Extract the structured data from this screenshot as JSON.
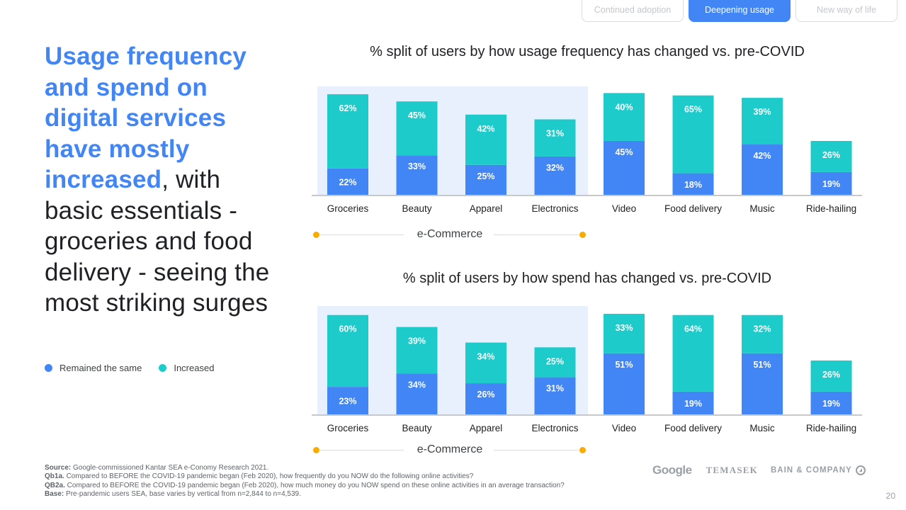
{
  "tabs": [
    {
      "label": "Continued adoption",
      "active": false
    },
    {
      "label": "Deepening usage",
      "active": true
    },
    {
      "label": "New way of life",
      "active": false
    }
  ],
  "headline": {
    "highlight": "Usage frequency and spend on digital services have mostly increased",
    "rest": ", with basic essentials - groceries and food delivery - seeing the most striking surges"
  },
  "legend": [
    {
      "label": "Remained the same",
      "color": "#4285f4"
    },
    {
      "label": "Increased",
      "color": "#1ccccc"
    }
  ],
  "group_label": "e-Commerce",
  "colors": {
    "remained": "#4285f4",
    "increased": "#1ecbcb",
    "ecommerce_bg": "#e8f0fe",
    "group_marker": "#f9ab00"
  },
  "chart_data": [
    {
      "type": "bar",
      "stacked": true,
      "title": "% split of users by how usage frequency has changed vs. pre-COVID",
      "categories": [
        "Groceries",
        "Beauty",
        "Apparel",
        "Electronics",
        "Video",
        "Food delivery",
        "Music",
        "Ride-hailing"
      ],
      "series": [
        {
          "name": "Remained the same",
          "values": [
            22,
            33,
            25,
            32,
            45,
            18,
            42,
            19
          ]
        },
        {
          "name": "Increased",
          "values": [
            62,
            45,
            42,
            31,
            40,
            65,
            39,
            26
          ]
        }
      ],
      "highlight_group": {
        "label": "e-Commerce",
        "categories": [
          "Groceries",
          "Beauty",
          "Apparel",
          "Electronics"
        ]
      },
      "unit": "%",
      "ylim": [
        0,
        90
      ],
      "grid": false,
      "xlabel": "",
      "ylabel": ""
    },
    {
      "type": "bar",
      "stacked": true,
      "title": "% split of users by how spend has changed vs. pre-COVID",
      "categories": [
        "Groceries",
        "Beauty",
        "Apparel",
        "Electronics",
        "Video",
        "Food delivery",
        "Music",
        "Ride-hailing"
      ],
      "series": [
        {
          "name": "Remained the same",
          "values": [
            23,
            34,
            26,
            31,
            51,
            19,
            51,
            19
          ]
        },
        {
          "name": "Increased",
          "values": [
            60,
            39,
            34,
            25,
            33,
            64,
            32,
            26
          ]
        }
      ],
      "highlight_group": {
        "label": "e-Commerce",
        "categories": [
          "Groceries",
          "Beauty",
          "Apparel",
          "Electronics"
        ]
      },
      "unit": "%",
      "ylim": [
        0,
        90
      ],
      "grid": false,
      "xlabel": "",
      "ylabel": ""
    }
  ],
  "footnotes": [
    {
      "label": "Source:",
      "text": " Google-commissioned Kantar SEA e-Conomy Research 2021."
    },
    {
      "label": "Qb1a.",
      "text": " Compared to BEFORE the COVID-19 pandemic began (Feb 2020), how frequently do you NOW do the following online activities?"
    },
    {
      "label": "QB2a.",
      "text": " Compared to BEFORE the COVID-19 pandemic began (Feb 2020), how much money do you NOW spend on these online activities in an average transaction?"
    },
    {
      "label": "Base:",
      "text": " Pre-pandemic users SEA, base varies by vertical from n=2,844 to n=4,539."
    }
  ],
  "logos": {
    "google": "Google",
    "temasek": "TEMASEK",
    "bain": "BAIN & COMPANY"
  },
  "page_number": "20"
}
